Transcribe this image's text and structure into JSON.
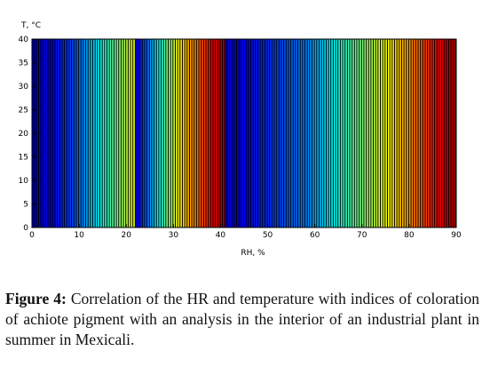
{
  "chart_data": {
    "type": "heatmap",
    "title": "",
    "xlabel": "RH, %",
    "ylabel": "T, °C",
    "xlim": [
      0,
      90
    ],
    "ylim": [
      0,
      40
    ],
    "x_ticks": [
      0,
      10,
      20,
      30,
      40,
      50,
      60,
      70,
      80,
      90
    ],
    "y_ticks": [
      0,
      5,
      10,
      15,
      20,
      25,
      30,
      35,
      40
    ],
    "grid": false,
    "legend": "none",
    "colormap": "jet (repeating vertical stripe bands)",
    "color_bands": [
      {
        "x_start": 0,
        "x_end": 9,
        "colors": "dark blue → blue"
      },
      {
        "x_start": 9,
        "x_end": 22,
        "colors": "blue → cyan → green → yellow"
      },
      {
        "x_start": 22,
        "x_end": 31,
        "colors": "dark blue → cyan → yellow"
      },
      {
        "x_start": 31,
        "x_end": 41,
        "colors": "yellow → orange → red → dark red"
      },
      {
        "x_start": 41,
        "x_end": 58,
        "colors": "dark blue → blue"
      },
      {
        "x_start": 58,
        "x_end": 70,
        "colors": "blue → cyan → green"
      },
      {
        "x_start": 70,
        "x_end": 80,
        "colors": "green → yellow → orange"
      },
      {
        "x_start": 80,
        "x_end": 90,
        "colors": "orange → red → dark red"
      }
    ]
  },
  "caption": {
    "label": "Figure 4:",
    "text": " Correlation of the HR and temperature with indices of coloration of achiote pigment with an analysis in the interior of an industrial plant in summer in Mexicali."
  }
}
